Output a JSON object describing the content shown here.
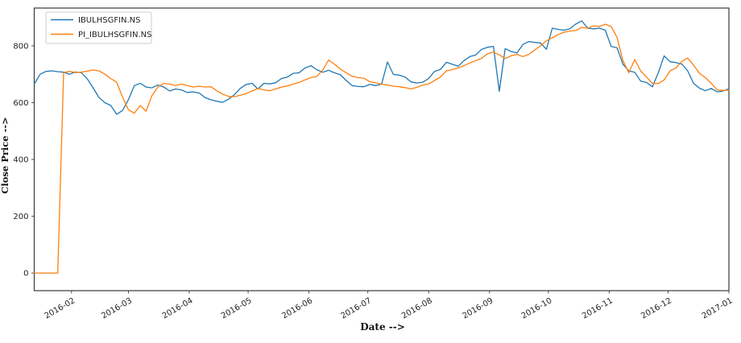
{
  "figure": {
    "background": "#ffffff",
    "spine_color": "#3a3a3a",
    "tick_text_color": "#1f1f1f"
  },
  "chart_data": {
    "type": "line",
    "title": "",
    "xlabel": "Date -->",
    "ylabel": "Close Price -->",
    "grid": false,
    "legend_position": "upper left",
    "legend_border_color": "#cccccc",
    "y_ticks": [
      0,
      200,
      400,
      600,
      800
    ],
    "ylim": [
      -62,
      933
    ],
    "x_tick_labels": [
      "2016-02",
      "2016-03",
      "2016-04",
      "2016-05",
      "2016-06",
      "2016-07",
      "2016-08",
      "2016-09",
      "2016-10",
      "2016-11",
      "2016-12",
      "2017-01"
    ],
    "dates": [
      "2016-01-13",
      "2016-01-16",
      "2016-01-19",
      "2016-01-22",
      "2016-01-25",
      "2016-01-28",
      "2016-01-31",
      "2016-02-03",
      "2016-02-06",
      "2016-02-09",
      "2016-02-12",
      "2016-02-15",
      "2016-02-18",
      "2016-02-21",
      "2016-02-24",
      "2016-02-27",
      "2016-03-01",
      "2016-03-04",
      "2016-03-07",
      "2016-03-10",
      "2016-03-13",
      "2016-03-16",
      "2016-03-19",
      "2016-03-22",
      "2016-03-25",
      "2016-03-28",
      "2016-03-31",
      "2016-04-03",
      "2016-04-06",
      "2016-04-09",
      "2016-04-12",
      "2016-04-15",
      "2016-04-18",
      "2016-04-21",
      "2016-04-24",
      "2016-04-27",
      "2016-04-30",
      "2016-05-03",
      "2016-05-06",
      "2016-05-09",
      "2016-05-12",
      "2016-05-15",
      "2016-05-18",
      "2016-05-21",
      "2016-05-24",
      "2016-05-27",
      "2016-05-30",
      "2016-06-02",
      "2016-06-05",
      "2016-06-08",
      "2016-06-11",
      "2016-06-14",
      "2016-06-17",
      "2016-06-20",
      "2016-06-23",
      "2016-06-26",
      "2016-06-29",
      "2016-07-02",
      "2016-07-05",
      "2016-07-08",
      "2016-07-11",
      "2016-07-14",
      "2016-07-17",
      "2016-07-20",
      "2016-07-23",
      "2016-07-26",
      "2016-07-29",
      "2016-08-01",
      "2016-08-04",
      "2016-08-07",
      "2016-08-10",
      "2016-08-13",
      "2016-08-16",
      "2016-08-19",
      "2016-08-22",
      "2016-08-25",
      "2016-08-28",
      "2016-08-31",
      "2016-09-03",
      "2016-09-06",
      "2016-09-09",
      "2016-09-12",
      "2016-09-15",
      "2016-09-18",
      "2016-09-21",
      "2016-09-24",
      "2016-09-27",
      "2016-09-30",
      "2016-10-03",
      "2016-10-06",
      "2016-10-09",
      "2016-10-12",
      "2016-10-15",
      "2016-10-18",
      "2016-10-21",
      "2016-10-24",
      "2016-10-27",
      "2016-10-30",
      "2016-11-02",
      "2016-11-05",
      "2016-11-08",
      "2016-11-11",
      "2016-11-14",
      "2016-11-17",
      "2016-11-20",
      "2016-11-23",
      "2016-11-26",
      "2016-11-29",
      "2016-12-02",
      "2016-12-05",
      "2016-12-08",
      "2016-12-11",
      "2016-12-14",
      "2016-12-17",
      "2016-12-20",
      "2016-12-23",
      "2016-12-26",
      "2016-12-29",
      "2017-01-01"
    ],
    "series": [
      {
        "name": "IBULHSGFIN.NS",
        "color": "#1f77b4",
        "values": [
          665,
          700,
          710,
          712,
          709,
          707,
          700,
          708,
          705,
          684,
          652,
          618,
          600,
          590,
          559,
          572,
          610,
          660,
          668,
          655,
          652,
          662,
          655,
          641,
          648,
          645,
          636,
          638,
          634,
          618,
          610,
          605,
          601,
          612,
          628,
          650,
          664,
          668,
          648,
          668,
          666,
          670,
          685,
          690,
          703,
          705,
          722,
          730,
          716,
          707,
          714,
          705,
          698,
          678,
          660,
          657,
          656,
          664,
          660,
          665,
          743,
          699,
          697,
          690,
          673,
          669,
          672,
          685,
          710,
          717,
          742,
          735,
          728,
          748,
          762,
          768,
          788,
          795,
          798,
          640,
          790,
          780,
          775,
          805,
          815,
          812,
          810,
          788,
          862,
          858,
          855,
          860,
          877,
          888,
          862,
          860,
          862,
          855,
          798,
          793,
          735,
          712,
          707,
          676,
          671,
          656,
          705,
          765,
          744,
          741,
          736,
          712,
          668,
          651,
          642,
          650,
          638,
          641,
          649
        ]
      },
      {
        "name": "PI_IBULHSGFIN.NS",
        "color": "#ff7f0e",
        "values": [
          0,
          0,
          0,
          0,
          0,
          706,
          710,
          706,
          707,
          711,
          715,
          712,
          700,
          685,
          672,
          620,
          575,
          563,
          590,
          570,
          625,
          655,
          668,
          665,
          660,
          665,
          660,
          655,
          658,
          655,
          656,
          642,
          630,
          622,
          621,
          626,
          632,
          641,
          650,
          645,
          642,
          648,
          655,
          659,
          665,
          671,
          680,
          688,
          692,
          715,
          750,
          735,
          718,
          705,
          693,
          688,
          686,
          674,
          670,
          665,
          662,
          658,
          656,
          653,
          648,
          654,
          662,
          666,
          678,
          690,
          712,
          716,
          722,
          730,
          740,
          748,
          756,
          772,
          778,
          768,
          755,
          765,
          770,
          762,
          770,
          785,
          800,
          818,
          828,
          840,
          848,
          852,
          854,
          865,
          862,
          870,
          868,
          876,
          868,
          830,
          748,
          705,
          752,
          712,
          690,
          668,
          667,
          680,
          712,
          722,
          745,
          757,
          732,
          703,
          688,
          668,
          645,
          643,
          644
        ]
      }
    ]
  }
}
